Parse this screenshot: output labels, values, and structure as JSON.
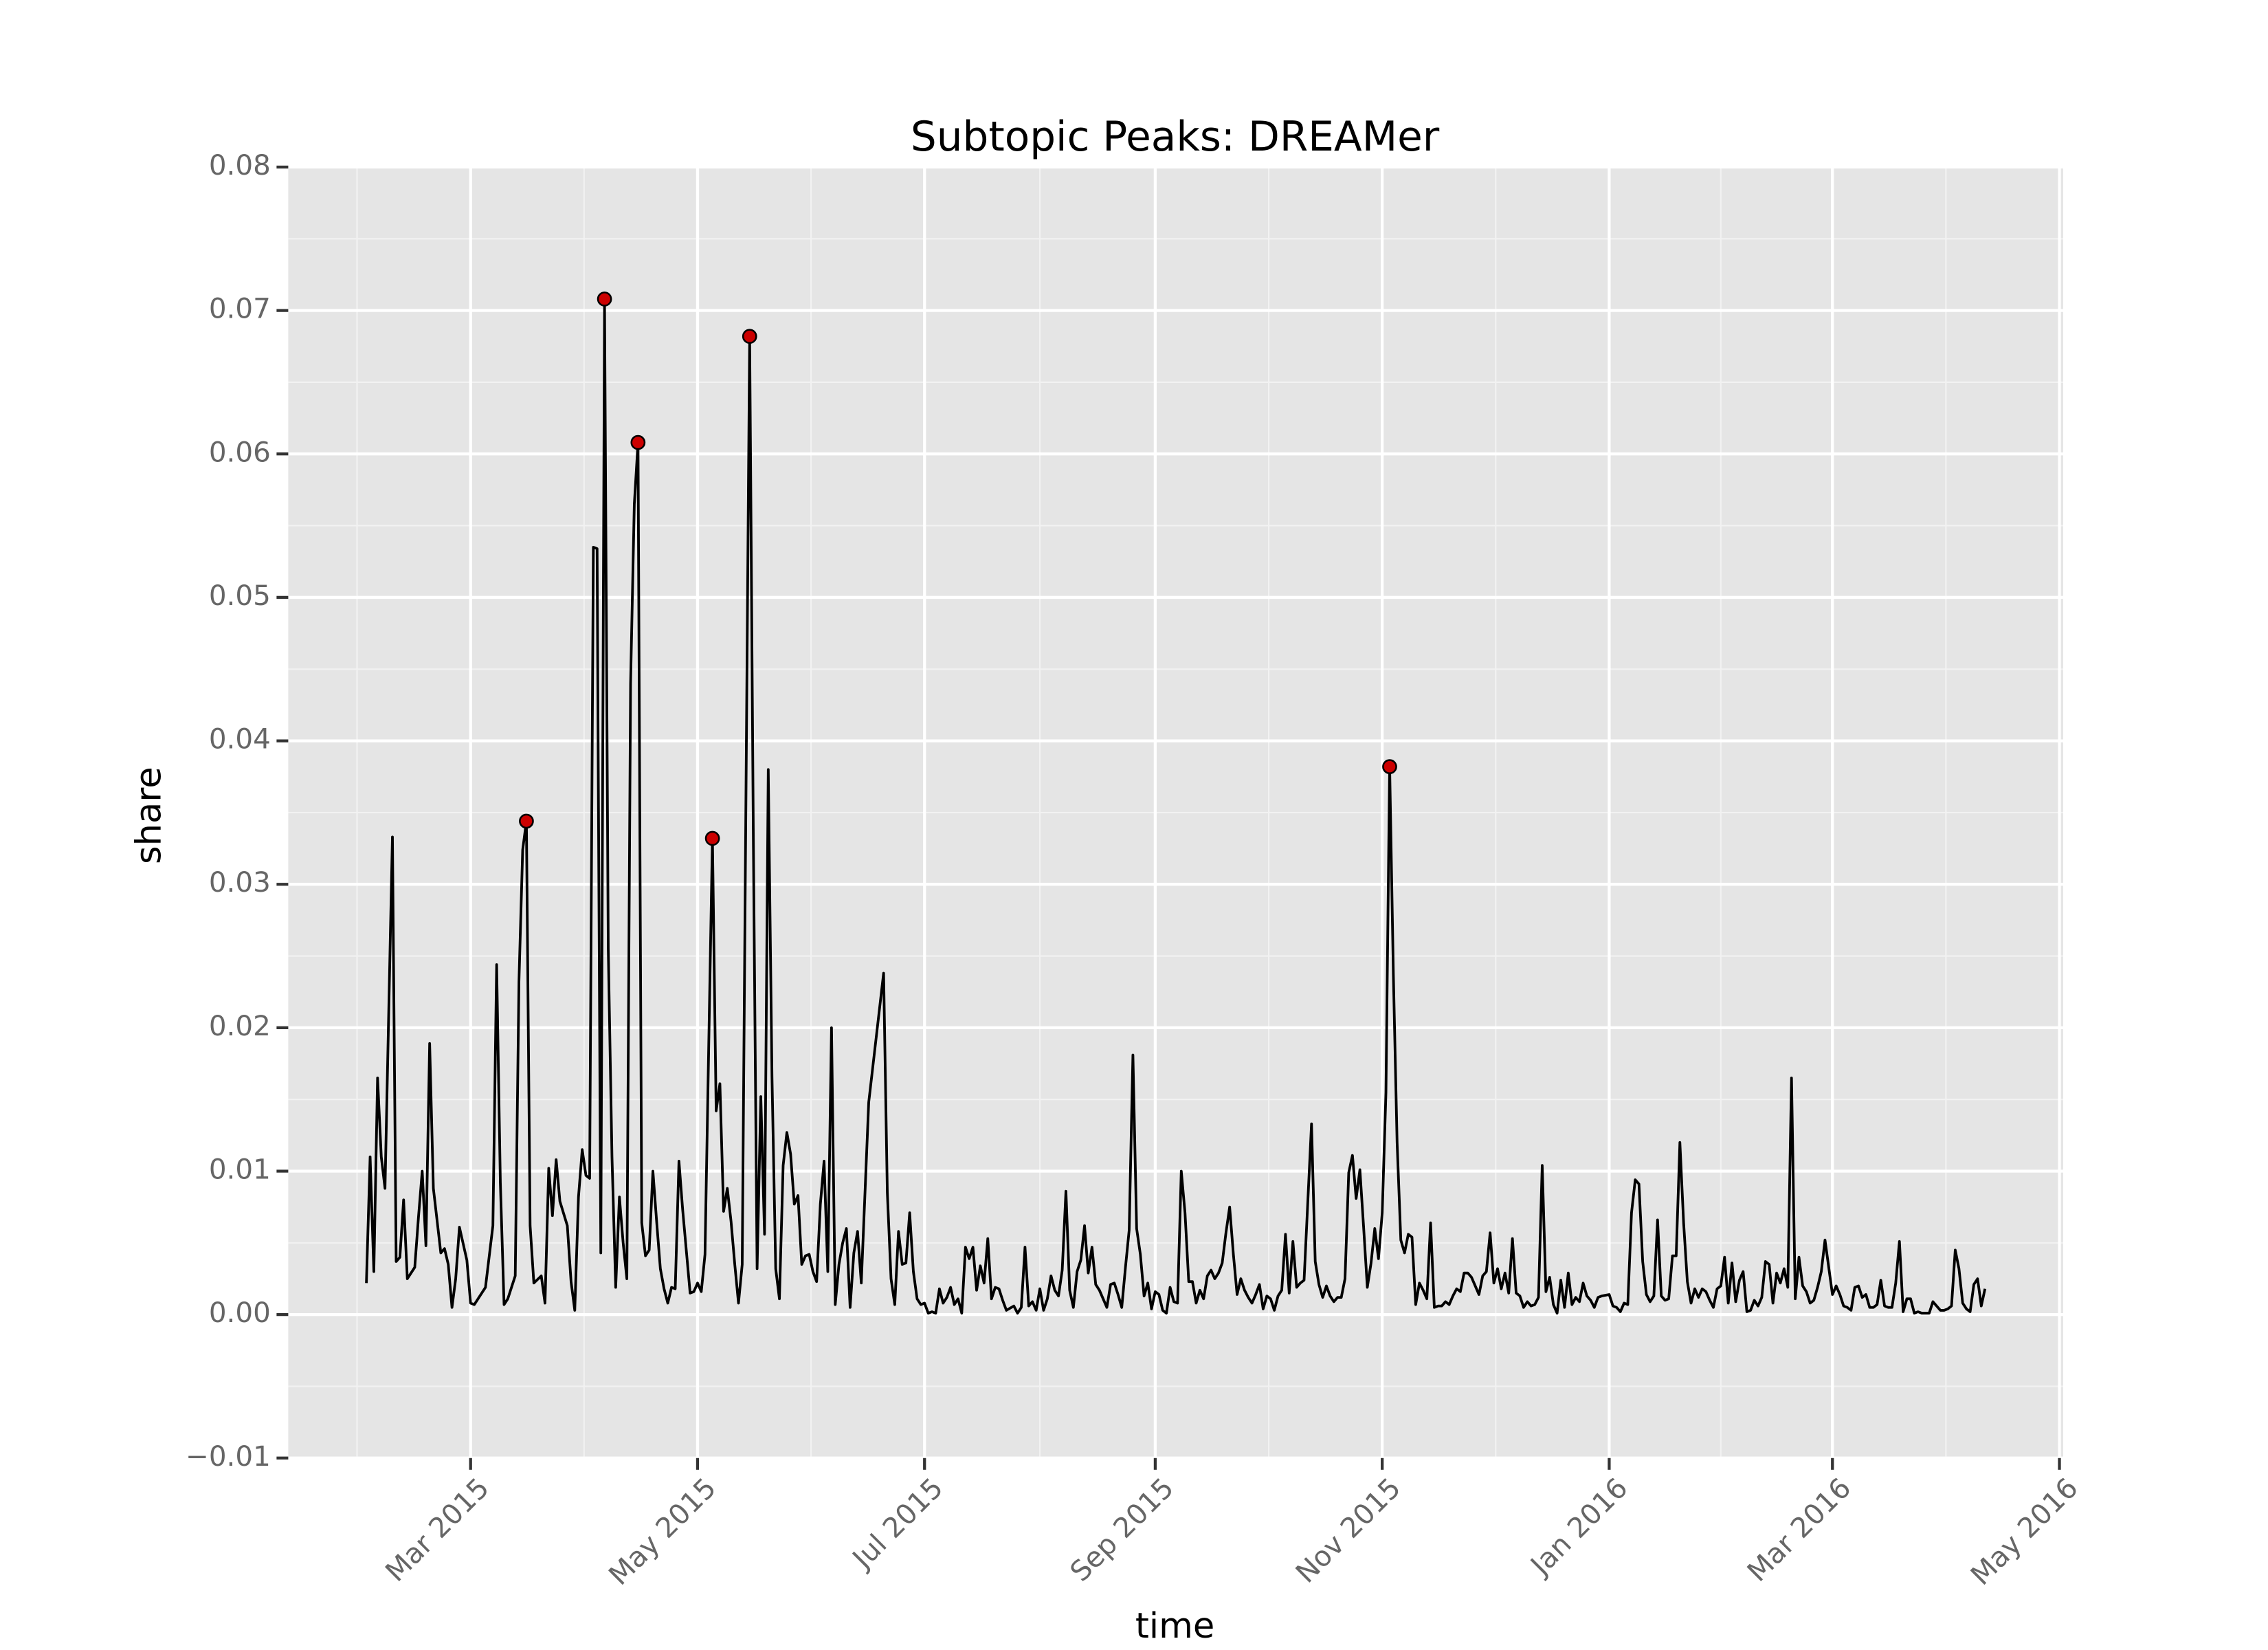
{
  "chart_data": {
    "type": "line",
    "title": "Subtopic Peaks: DREAMer",
    "x_label": "time",
    "y_label": "share",
    "grid": true,
    "xlim": [
      "2015-01-11",
      "2016-05-02"
    ],
    "xticks": [
      {
        "value": "2015-03-01",
        "label": "Mar 2015"
      },
      {
        "value": "2015-05-01",
        "label": "May 2015"
      },
      {
        "value": "2015-07-01",
        "label": "Jul 2015"
      },
      {
        "value": "2015-09-01",
        "label": "Sep 2015"
      },
      {
        "value": "2015-11-01",
        "label": "Nov 2015"
      },
      {
        "value": "2016-01-01",
        "label": "Jan 2016"
      },
      {
        "value": "2016-03-01",
        "label": "Mar 2016"
      },
      {
        "value": "2016-05-01",
        "label": "May 2016"
      }
    ],
    "ylim": [
      -0.01,
      0.08
    ],
    "yticks": [
      {
        "value": -0.01,
        "label": "−0.01"
      },
      {
        "value": 0,
        "label": "0.00"
      },
      0.01,
      0.02,
      0.03,
      0.04,
      0.05,
      0.06,
      0.07,
      0.08
    ],
    "series": [
      {
        "type": "line",
        "color": "#000000",
        "x": [
          "2015-02-01",
          "2015-02-02",
          "2015-02-03",
          "2015-02-04",
          "2015-02-05",
          "2015-02-06",
          "2015-02-08",
          "2015-02-09",
          "2015-02-10",
          "2015-02-11",
          "2015-02-12",
          "2015-02-14",
          "2015-02-15",
          "2015-02-16",
          "2015-02-17",
          "2015-02-18",
          "2015-02-19",
          "2015-02-21",
          "2015-02-22",
          "2015-02-23",
          "2015-02-24",
          "2015-02-25",
          "2015-02-26",
          "2015-02-28",
          "2015-03-01",
          "2015-03-02",
          "2015-03-04",
          "2015-03-05",
          "2015-03-07",
          "2015-03-08",
          "2015-03-09",
          "2015-03-10",
          "2015-03-11",
          "2015-03-13",
          "2015-03-14",
          "2015-03-15",
          "2015-03-16",
          "2015-03-17",
          "2015-03-18",
          "2015-03-20",
          "2015-03-21",
          "2015-03-22",
          "2015-03-23",
          "2015-03-24",
          "2015-03-25",
          "2015-03-27",
          "2015-03-28",
          "2015-03-29",
          "2015-03-30",
          "2015-03-31",
          "2015-04-01",
          "2015-04-02",
          "2015-04-03",
          "2015-04-04",
          "2015-04-05",
          "2015-04-06",
          "2015-04-07",
          "2015-04-08",
          "2015-04-09",
          "2015-04-10",
          "2015-04-11",
          "2015-04-12",
          "2015-04-13",
          "2015-04-14",
          "2015-04-15",
          "2015-04-16",
          "2015-04-17",
          "2015-04-18",
          "2015-04-19",
          "2015-04-20",
          "2015-04-21",
          "2015-04-22",
          "2015-04-23",
          "2015-04-24",
          "2015-04-25",
          "2015-04-26",
          "2015-04-27",
          "2015-04-29",
          "2015-04-30",
          "2015-05-01",
          "2015-05-02",
          "2015-05-03",
          "2015-05-05",
          "2015-05-06",
          "2015-05-07",
          "2015-05-08",
          "2015-05-09",
          "2015-05-10",
          "2015-05-11",
          "2015-05-12",
          "2015-05-13",
          "2015-05-15",
          "2015-05-16",
          "2015-05-17",
          "2015-05-18",
          "2015-05-19",
          "2015-05-20",
          "2015-05-21",
          "2015-05-22",
          "2015-05-23",
          "2015-05-24",
          "2015-05-25",
          "2015-05-26",
          "2015-05-27",
          "2015-05-28",
          "2015-05-29",
          "2015-05-30",
          "2015-05-31",
          "2015-06-01",
          "2015-06-02",
          "2015-06-03",
          "2015-06-04",
          "2015-06-05",
          "2015-06-06",
          "2015-06-07",
          "2015-06-08",
          "2015-06-09",
          "2015-06-10",
          "2015-06-11",
          "2015-06-12",
          "2015-06-13",
          "2015-06-14",
          "2015-06-16",
          "2015-06-20",
          "2015-06-21",
          "2015-06-22",
          "2015-06-23",
          "2015-06-24",
          "2015-06-25",
          "2015-06-26",
          "2015-06-27",
          "2015-06-28",
          "2015-06-29",
          "2015-06-30",
          "2015-07-01",
          "2015-07-02",
          "2015-07-03",
          "2015-07-04",
          "2015-07-05",
          "2015-07-06",
          "2015-07-07",
          "2015-07-08",
          "2015-07-09",
          "2015-07-10",
          "2015-07-11",
          "2015-07-12",
          "2015-07-13",
          "2015-07-14",
          "2015-07-15",
          "2015-07-16",
          "2015-07-17",
          "2015-07-18",
          "2015-07-19",
          "2015-07-20",
          "2015-07-21",
          "2015-07-22",
          "2015-07-23",
          "2015-07-25",
          "2015-07-26",
          "2015-07-27",
          "2015-07-28",
          "2015-07-29",
          "2015-07-30",
          "2015-07-31",
          "2015-08-01",
          "2015-08-02",
          "2015-08-03",
          "2015-08-04",
          "2015-08-05",
          "2015-08-06",
          "2015-08-07",
          "2015-08-08",
          "2015-08-09",
          "2015-08-10",
          "2015-08-11",
          "2015-08-12",
          "2015-08-13",
          "2015-08-14",
          "2015-08-15",
          "2015-08-16",
          "2015-08-17",
          "2015-08-19",
          "2015-08-20",
          "2015-08-21",
          "2015-08-22",
          "2015-08-23",
          "2015-08-24",
          "2015-08-25",
          "2015-08-26",
          "2015-08-27",
          "2015-08-28",
          "2015-08-29",
          "2015-08-30",
          "2015-08-31",
          "2015-09-01",
          "2015-09-02",
          "2015-09-03",
          "2015-09-04",
          "2015-09-05",
          "2015-09-06",
          "2015-09-07",
          "2015-09-08",
          "2015-09-09",
          "2015-09-10",
          "2015-09-11",
          "2015-09-12",
          "2015-09-13",
          "2015-09-14",
          "2015-09-15",
          "2015-09-16",
          "2015-09-17",
          "2015-09-18",
          "2015-09-19",
          "2015-09-20",
          "2015-09-21",
          "2015-09-22",
          "2015-09-23",
          "2015-09-24",
          "2015-09-25",
          "2015-09-26",
          "2015-09-27",
          "2015-09-28",
          "2015-09-29",
          "2015-09-30",
          "2015-10-01",
          "2015-10-02",
          "2015-10-03",
          "2015-10-04",
          "2015-10-05",
          "2015-10-06",
          "2015-10-07",
          "2015-10-08",
          "2015-10-09",
          "2015-10-10",
          "2015-10-11",
          "2015-10-13",
          "2015-10-14",
          "2015-10-15",
          "2015-10-16",
          "2015-10-17",
          "2015-10-18",
          "2015-10-19",
          "2015-10-20",
          "2015-10-21",
          "2015-10-22",
          "2015-10-23",
          "2015-10-24",
          "2015-10-25",
          "2015-10-26",
          "2015-10-27",
          "2015-10-28",
          "2015-10-29",
          "2015-10-30",
          "2015-10-31",
          "2015-11-01",
          "2015-11-02",
          "2015-11-03",
          "2015-11-04",
          "2015-11-05",
          "2015-11-06",
          "2015-11-07",
          "2015-11-08",
          "2015-11-09",
          "2015-11-10",
          "2015-11-11",
          "2015-11-12",
          "2015-11-13",
          "2015-11-14",
          "2015-11-15",
          "2015-11-16",
          "2015-11-17",
          "2015-11-18",
          "2015-11-19",
          "2015-11-20",
          "2015-11-21",
          "2015-11-22",
          "2015-11-23",
          "2015-11-24",
          "2015-11-25",
          "2015-11-26",
          "2015-11-27",
          "2015-11-28",
          "2015-11-29",
          "2015-11-30",
          "2015-12-01",
          "2015-12-02",
          "2015-12-03",
          "2015-12-04",
          "2015-12-05",
          "2015-12-06",
          "2015-12-07",
          "2015-12-08",
          "2015-12-09",
          "2015-12-10",
          "2015-12-11",
          "2015-12-12",
          "2015-12-13",
          "2015-12-14",
          "2015-12-15",
          "2015-12-16",
          "2015-12-17",
          "2015-12-18",
          "2015-12-19",
          "2015-12-20",
          "2015-12-21",
          "2015-12-22",
          "2015-12-23",
          "2015-12-24",
          "2015-12-25",
          "2015-12-26",
          "2015-12-27",
          "2015-12-28",
          "2015-12-29",
          "2015-12-30",
          "2016-01-01",
          "2016-01-02",
          "2016-01-03",
          "2016-01-04",
          "2016-01-05",
          "2016-01-06",
          "2016-01-07",
          "2016-01-08",
          "2016-01-09",
          "2016-01-10",
          "2016-01-11",
          "2016-01-12",
          "2016-01-13",
          "2016-01-14",
          "2016-01-15",
          "2016-01-16",
          "2016-01-17",
          "2016-01-18",
          "2016-01-19",
          "2016-01-20",
          "2016-01-21",
          "2016-01-22",
          "2016-01-23",
          "2016-01-24",
          "2016-01-25",
          "2016-01-26",
          "2016-01-27",
          "2016-01-28",
          "2016-01-29",
          "2016-01-30",
          "2016-01-31",
          "2016-02-01",
          "2016-02-02",
          "2016-02-03",
          "2016-02-04",
          "2016-02-05",
          "2016-02-06",
          "2016-02-07",
          "2016-02-08",
          "2016-02-09",
          "2016-02-10",
          "2016-02-11",
          "2016-02-12",
          "2016-02-13",
          "2016-02-14",
          "2016-02-15",
          "2016-02-16",
          "2016-02-17",
          "2016-02-18",
          "2016-02-19",
          "2016-02-20",
          "2016-02-21",
          "2016-02-22",
          "2016-02-23",
          "2016-02-24",
          "2016-02-25",
          "2016-02-26",
          "2016-02-27",
          "2016-02-28",
          "2016-02-29",
          "2016-03-01",
          "2016-03-02",
          "2016-03-03",
          "2016-03-04",
          "2016-03-05",
          "2016-03-06",
          "2016-03-07",
          "2016-03-08",
          "2016-03-09",
          "2016-03-10",
          "2016-03-11",
          "2016-03-12",
          "2016-03-13",
          "2016-03-14",
          "2016-03-15",
          "2016-03-16",
          "2016-03-17",
          "2016-03-18",
          "2016-03-19",
          "2016-03-20",
          "2016-03-21",
          "2016-03-22",
          "2016-03-23",
          "2016-03-24",
          "2016-03-25",
          "2016-03-26",
          "2016-03-27",
          "2016-03-28",
          "2016-03-29",
          "2016-03-30",
          "2016-03-31",
          "2016-04-01",
          "2016-04-02",
          "2016-04-03",
          "2016-04-04",
          "2016-04-05",
          "2016-04-06",
          "2016-04-07",
          "2016-04-08",
          "2016-04-09",
          "2016-04-10",
          "2016-04-11"
        ],
        "values": [
          0.0022,
          0.011,
          0.003,
          0.0165,
          0.011,
          0.0088,
          0.0333,
          0.0037,
          0.004,
          0.008,
          0.0025,
          0.0033,
          0.0068,
          0.01,
          0.0048,
          0.0189,
          0.0088,
          0.0043,
          0.0046,
          0.0035,
          0.0005,
          0.0025,
          0.0061,
          0.0038,
          0.0008,
          0.0007,
          0.0015,
          0.0019,
          0.0062,
          0.0244,
          0.0092,
          0.0007,
          0.0011,
          0.0027,
          0.0232,
          0.0324,
          0.0344,
          0.0062,
          0.0022,
          0.0027,
          0.0008,
          0.0102,
          0.0069,
          0.0108,
          0.0079,
          0.0062,
          0.0023,
          0.0003,
          0.0082,
          0.0115,
          0.0097,
          0.0095,
          0.0535,
          0.0534,
          0.0043,
          0.0708,
          0.0255,
          0.011,
          0.0019,
          0.0082,
          0.005,
          0.0025,
          0.044,
          0.0565,
          0.0608,
          0.0064,
          0.0041,
          0.0045,
          0.01,
          0.0065,
          0.0032,
          0.0018,
          0.0008,
          0.0019,
          0.0018,
          0.0107,
          0.0073,
          0.0015,
          0.0016,
          0.0022,
          0.0016,
          0.0042,
          0.0332,
          0.0142,
          0.0161,
          0.0072,
          0.0088,
          0.0065,
          0.0035,
          0.0008,
          0.0035,
          0.0682,
          0.033,
          0.0032,
          0.0152,
          0.0056,
          0.038,
          0.0166,
          0.0032,
          0.0011,
          0.0104,
          0.0127,
          0.0112,
          0.0077,
          0.0083,
          0.0035,
          0.0041,
          0.0042,
          0.003,
          0.0023,
          0.0077,
          0.0107,
          0.003,
          0.02,
          0.0007,
          0.0035,
          0.005,
          0.006,
          0.0005,
          0.0043,
          0.0058,
          0.0022,
          0.0148,
          0.0238,
          0.0085,
          0.0025,
          0.0007,
          0.0058,
          0.0035,
          0.0036,
          0.0071,
          0.003,
          0.0011,
          0.0007,
          0.0008,
          0.0001,
          0.0002,
          0.0001,
          0.0018,
          0.0008,
          0.0012,
          0.0019,
          0.0007,
          0.0011,
          0.0001,
          0.0047,
          0.0039,
          0.0047,
          0.0017,
          0.0034,
          0.0022,
          0.0053,
          0.0011,
          0.0019,
          0.0018,
          0.001,
          0.0003,
          0.0006,
          0.0001,
          0.0005,
          0.0047,
          0.0006,
          0.0009,
          0.0003,
          0.0018,
          0.0003,
          0.0011,
          0.0027,
          0.0017,
          0.0013,
          0.0031,
          0.0086,
          0.0017,
          0.0005,
          0.003,
          0.0038,
          0.0062,
          0.0029,
          0.0047,
          0.0021,
          0.0017,
          0.0005,
          0.0021,
          0.0022,
          0.0014,
          0.0005,
          0.0033,
          0.0059,
          0.0181,
          0.006,
          0.0042,
          0.0013,
          0.0022,
          0.0004,
          0.0016,
          0.0014,
          0.0003,
          0.0001,
          0.0019,
          0.0009,
          0.0008,
          0.01,
          0.0071,
          0.0023,
          0.0023,
          0.0008,
          0.0017,
          0.0011,
          0.0027,
          0.0031,
          0.0025,
          0.0029,
          0.0036,
          0.0057,
          0.0075,
          0.0042,
          0.0014,
          0.0025,
          0.0017,
          0.0012,
          0.0008,
          0.0014,
          0.0021,
          0.0004,
          0.0013,
          0.0011,
          0.0003,
          0.0013,
          0.0017,
          0.0056,
          0.0015,
          0.0051,
          0.0019,
          0.0022,
          0.0024,
          0.0133,
          0.0037,
          0.0021,
          0.0012,
          0.002,
          0.0013,
          0.0009,
          0.0012,
          0.0012,
          0.0025,
          0.0099,
          0.0111,
          0.0081,
          0.0101,
          0.0061,
          0.0019,
          0.0036,
          0.006,
          0.0039,
          0.0071,
          0.0155,
          0.0382,
          0.0237,
          0.012,
          0.0052,
          0.0043,
          0.0056,
          0.0054,
          0.0007,
          0.0022,
          0.0017,
          0.0011,
          0.0064,
          0.0005,
          0.0006,
          0.0006,
          0.0009,
          0.0007,
          0.0013,
          0.0018,
          0.0016,
          0.0029,
          0.0029,
          0.0026,
          0.002,
          0.0014,
          0.0027,
          0.003,
          0.0057,
          0.0022,
          0.0032,
          0.0018,
          0.0029,
          0.0015,
          0.0053,
          0.0015,
          0.0013,
          0.0005,
          0.0009,
          0.0006,
          0.0007,
          0.0012,
          0.0104,
          0.0016,
          0.0026,
          0.0007,
          0.0001,
          0.0024,
          0.0005,
          0.0029,
          0.0007,
          0.0012,
          0.0009,
          0.0022,
          0.0013,
          0.001,
          0.0005,
          0.0012,
          0.0013,
          0.0014,
          0.0006,
          0.0005,
          0.0002,
          0.0008,
          0.0007,
          0.0071,
          0.0094,
          0.0091,
          0.0037,
          0.0014,
          0.0009,
          0.0013,
          0.0066,
          0.0013,
          0.001,
          0.0011,
          0.0041,
          0.0041,
          0.012,
          0.0064,
          0.0023,
          0.0008,
          0.0018,
          0.0012,
          0.0018,
          0.0016,
          0.001,
          0.0005,
          0.0018,
          0.002,
          0.004,
          0.0008,
          0.0036,
          0.0009,
          0.0024,
          0.003,
          0.0002,
          0.0003,
          0.001,
          0.0006,
          0.0012,
          0.0037,
          0.0035,
          0.0008,
          0.0029,
          0.0022,
          0.0032,
          0.0019,
          0.0165,
          0.0011,
          0.004,
          0.002,
          0.0016,
          0.0008,
          0.001,
          0.0019,
          0.003,
          0.0052,
          0.0033,
          0.0014,
          0.002,
          0.0014,
          0.0006,
          0.0005,
          0.0003,
          0.0019,
          0.002,
          0.0012,
          0.0014,
          0.0005,
          0.0005,
          0.0007,
          0.0024,
          0.0006,
          0.0005,
          0.0005,
          0.0022,
          0.0051,
          0.0002,
          0.0011,
          0.0011,
          0.0001,
          0.0002,
          0.0001,
          0.0001,
          0.0001,
          0.0009,
          0.0006,
          0.0003,
          0.0003,
          0.0004,
          0.0006,
          0.0045,
          0.0032,
          0.0008,
          0.0004,
          0.0002,
          0.0021,
          0.0025,
          0.0006,
          0.0018
        ]
      },
      {
        "type": "scatter",
        "color": "#cc0000",
        "x": [
          "2015-03-16",
          "2015-04-06",
          "2015-04-15",
          "2015-05-05",
          "2015-05-15",
          "2015-11-03"
        ],
        "values": [
          0.0344,
          0.0708,
          0.0608,
          0.0332,
          0.0682,
          0.0382
        ]
      }
    ]
  }
}
